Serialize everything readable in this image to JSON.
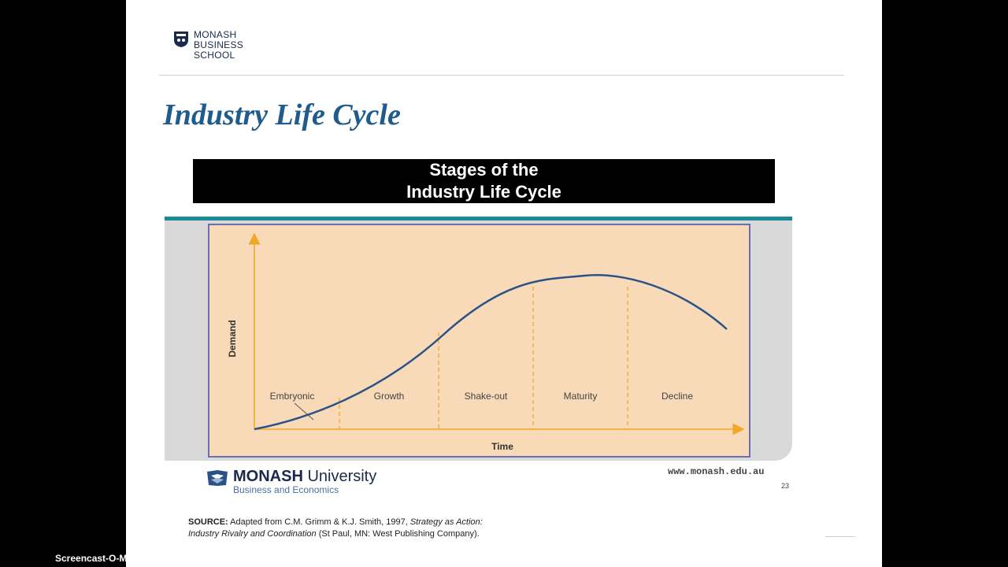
{
  "logo": {
    "line1": "MONASH",
    "line2": "BUSINESS",
    "line3": "SCHOOL"
  },
  "slide_title": "Industry Life Cycle",
  "banner": {
    "line1": "Stages of the",
    "line2": "Industry Life Cycle"
  },
  "chart_data": {
    "type": "line",
    "xlabel": "Time",
    "ylabel": "Demand",
    "stages": [
      "Embryonic",
      "Growth",
      "Shake-out",
      "Maturity",
      "Decline"
    ],
    "stage_boundaries": [
      0.18,
      0.39,
      0.59,
      0.79
    ],
    "curve": "rises slowly, accelerates, peaks during Maturity, then declines",
    "colors": {
      "background": "#f8d9b8",
      "frame": "#6b6fb0",
      "axes": "#f2a825",
      "curve": "#2b5286",
      "dividers": "#f2a825"
    }
  },
  "footer": {
    "uni_bold": "MONASH",
    "uni_rest": " University",
    "uni_sub": "Business and Economics",
    "url": "www.monash.edu.au",
    "page": "23"
  },
  "source": {
    "label": "SOURCE:",
    "text1": " Adapted from C.M. Grimm & K.J. Smith, 1997, ",
    "title1": "Strategy as Action:",
    "title2": "Industry Rivalry and Coordination",
    "text2": " (St Paul, MN: West Publishing Company)."
  },
  "watermark": "Screencast-O-Matic.com"
}
